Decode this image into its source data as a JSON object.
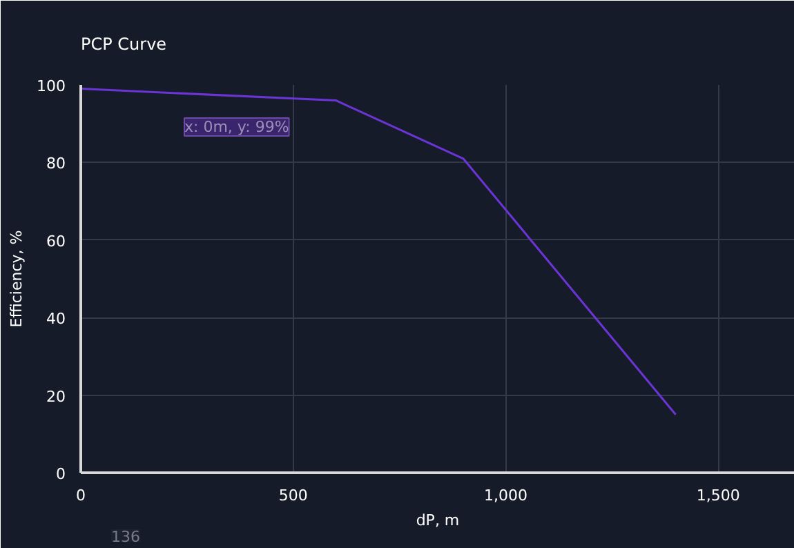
{
  "chart_data": {
    "type": "line",
    "title": "PCP Curve",
    "xlabel": "dP, m",
    "ylabel": "Efficiency, %",
    "x": [
      0,
      600,
      900,
      1400
    ],
    "series": [
      {
        "color": "#6b35d6",
        "values": [
          99,
          96,
          81,
          15
        ]
      }
    ],
    "xlim": [
      0,
      1680
    ],
    "ylim": [
      0,
      100
    ],
    "xticks": [
      0,
      {
        "value": 500,
        "label": "500"
      },
      {
        "value": 1000,
        "label": "1,000"
      },
      {
        "value": 1500,
        "label": "1,500"
      }
    ],
    "yticks": [
      0,
      20,
      40,
      60,
      80,
      100
    ],
    "grid": true,
    "annotations": [
      "x: 0m, y: 99%",
      "136"
    ]
  }
}
